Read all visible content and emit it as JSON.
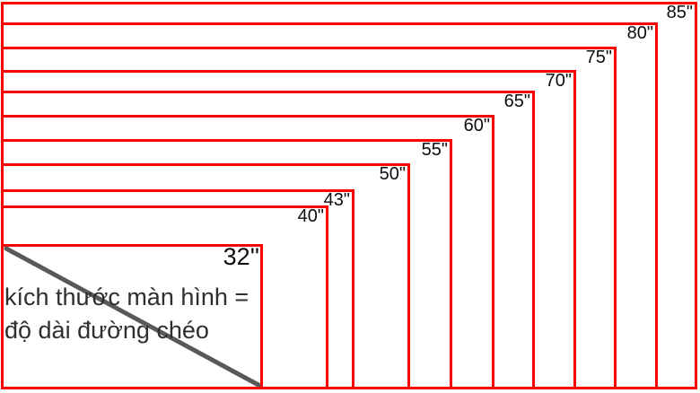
{
  "diagram": {
    "type": "nested-screen-size-comparison",
    "unit": "inch",
    "note_line1": "kích thước màn hình =",
    "note_line2": "độ dài đường chéo",
    "screens": [
      {
        "label": "85\"",
        "inches": 85
      },
      {
        "label": "80\"",
        "inches": 80
      },
      {
        "label": "75\"",
        "inches": 75
      },
      {
        "label": "70\"",
        "inches": 70
      },
      {
        "label": "65\"",
        "inches": 65
      },
      {
        "label": "60\"",
        "inches": 60
      },
      {
        "label": "55\"",
        "inches": 55
      },
      {
        "label": "50\"",
        "inches": 50
      },
      {
        "label": "43\"",
        "inches": 43
      },
      {
        "label": "40\"",
        "inches": 40
      },
      {
        "label": "32''",
        "inches": 32
      }
    ],
    "colors": {
      "frame": "#ff0000",
      "diagonal": "#595959",
      "note_text": "#2f2f2f",
      "label_text": "#0d0d0d",
      "background": "#ffffff"
    }
  }
}
